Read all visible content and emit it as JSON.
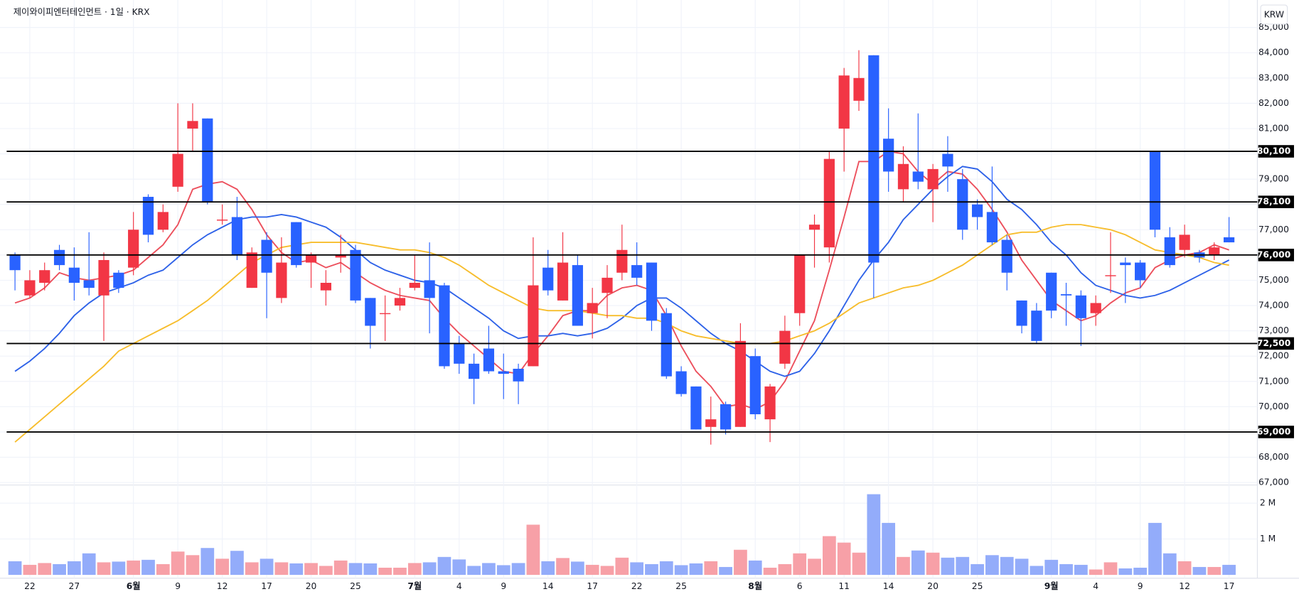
{
  "chart_data": {
    "type": "candlestick",
    "title": "제이와이피엔터테인먼트 · 1일 · KRX",
    "currency": "KRW",
    "up_color": "#f23645",
    "down_color": "#2962ff",
    "volume_up_color": "#f7a0a7",
    "volume_down_color": "#93acfa",
    "categories": [
      null,
      "22",
      null,
      null,
      "27",
      null,
      null,
      null,
      "6월",
      null,
      null,
      "9",
      null,
      null,
      "12",
      null,
      null,
      "17",
      null,
      null,
      "20",
      null,
      null,
      "25",
      null,
      null,
      null,
      "7월",
      null,
      null,
      "4",
      null,
      null,
      "9",
      null,
      null,
      "14",
      null,
      null,
      "17",
      null,
      null,
      "22",
      null,
      null,
      "25",
      null,
      null,
      null,
      null,
      "8월",
      null,
      null,
      "6",
      null,
      null,
      "11",
      null,
      null,
      "14",
      null,
      null,
      "20",
      null,
      null,
      "25",
      null,
      null,
      null,
      null,
      "9월",
      null,
      null,
      "4",
      null,
      null,
      "9",
      null,
      null,
      "12",
      null,
      null,
      "17"
    ],
    "open": [
      76000,
      74400,
      74900,
      76200,
      75500,
      75000,
      74400,
      75300,
      75500,
      78300,
      77000,
      78700,
      81000,
      81400,
      77400,
      77500,
      74700,
      76600,
      74300,
      77300,
      75700,
      74600,
      75900,
      76200,
      74300,
      73700,
      74000,
      74700,
      75000,
      74800,
      72500,
      71700,
      72300,
      71400,
      71500,
      71600,
      75500,
      74200,
      75600,
      73700,
      74500,
      75300,
      75600,
      75700,
      73700,
      71400,
      70800,
      69200,
      70100,
      69200,
      72000,
      69500,
      71700,
      73700,
      77000,
      76300,
      81000,
      82100,
      83900,
      80600,
      78600,
      79300,
      78600,
      80000,
      79000,
      78000,
      77700,
      76600,
      74200,
      73800,
      75300,
      74450,
      74400,
      73700,
      75200,
      75700,
      75700,
      80100,
      76700,
      76200,
      76100,
      76000,
      76700
    ],
    "high": [
      76100,
      75400,
      75700,
      76400,
      76300,
      76900,
      76100,
      75400,
      77700,
      78400,
      78000,
      82000,
      82000,
      81400,
      78000,
      78300,
      76300,
      76900,
      76700,
      77300,
      76100,
      75400,
      76800,
      76400,
      74300,
      74400,
      74700,
      76000,
      76500,
      74900,
      72800,
      72100,
      73200,
      72100,
      71700,
      76700,
      76200,
      76900,
      76000,
      74700,
      75600,
      77200,
      76500,
      75700,
      73900,
      71600,
      70800,
      70400,
      70200,
      73300,
      72300,
      70900,
      73600,
      76000,
      77600,
      80100,
      83400,
      84100,
      83900,
      81800,
      80300,
      81600,
      79600,
      80700,
      79400,
      78200,
      79500,
      76800,
      74200,
      74100,
      75300,
      74900,
      74600,
      74400,
      76900,
      75900,
      75800,
      80100,
      77100,
      77200,
      76200,
      76500,
      77500
    ],
    "low": [
      74600,
      74300,
      74600,
      75400,
      74200,
      74400,
      72600,
      74500,
      75200,
      76500,
      76900,
      78500,
      80100,
      78000,
      77200,
      75800,
      74700,
      73500,
      74100,
      75500,
      74700,
      74000,
      75300,
      74100,
      72300,
      72600,
      73800,
      74600,
      72900,
      71500,
      71300,
      70100,
      71300,
      70300,
      70100,
      71600,
      74400,
      74200,
      73200,
      72700,
      73500,
      75000,
      74800,
      73000,
      71100,
      70400,
      69100,
      68500,
      68900,
      69200,
      69500,
      68600,
      71500,
      73200,
      75500,
      75700,
      79300,
      81700,
      74300,
      78500,
      78100,
      78600,
      77300,
      78500,
      76600,
      77000,
      76400,
      74600,
      72900,
      72500,
      73500,
      73200,
      72400,
      73200,
      74500,
      74100,
      74700,
      76700,
      75500,
      75900,
      75700,
      75800,
      76500
    ],
    "close": [
      75400,
      75000,
      75400,
      75600,
      74900,
      74700,
      75800,
      74700,
      77000,
      76800,
      77700,
      80000,
      81300,
      78100,
      77400,
      76000,
      76100,
      75300,
      75700,
      75600,
      76000,
      74900,
      76000,
      74200,
      73200,
      73700,
      74300,
      74900,
      74300,
      71600,
      71700,
      71100,
      71400,
      71300,
      71000,
      74800,
      74600,
      75700,
      73200,
      74100,
      75100,
      76200,
      75100,
      73400,
      71200,
      70500,
      69100,
      69500,
      69100,
      72600,
      69700,
      70800,
      73000,
      76000,
      77200,
      79800,
      83100,
      83000,
      75700,
      79300,
      79600,
      78900,
      79400,
      79500,
      77000,
      77500,
      76500,
      75300,
      73200,
      72600,
      73800,
      74400,
      73500,
      74100,
      75200,
      75600,
      75000,
      77000,
      75600,
      76800,
      75900,
      76300,
      76500
    ],
    "volume": [
      380000,
      280000,
      330000,
      300000,
      380000,
      600000,
      350000,
      370000,
      400000,
      420000,
      300000,
      650000,
      550000,
      750000,
      450000,
      670000,
      350000,
      450000,
      350000,
      320000,
      330000,
      250000,
      400000,
      330000,
      320000,
      200000,
      200000,
      330000,
      350000,
      500000,
      430000,
      250000,
      330000,
      270000,
      330000,
      1400000,
      380000,
      470000,
      370000,
      280000,
      250000,
      480000,
      350000,
      300000,
      380000,
      270000,
      320000,
      380000,
      220000,
      700000,
      400000,
      200000,
      300000,
      600000,
      450000,
      1080000,
      900000,
      620000,
      2250000,
      1450000,
      500000,
      680000,
      620000,
      480000,
      500000,
      300000,
      550000,
      500000,
      450000,
      250000,
      420000,
      300000,
      280000,
      150000,
      350000,
      180000,
      200000,
      1450000,
      600000,
      380000,
      220000,
      220000,
      280000
    ],
    "lines": [
      {
        "color": "#ec4f5c",
        "values": [
          74100,
          74300,
          74700,
          75300,
          75100,
          75000,
          75100,
          75200,
          75400,
          75900,
          76400,
          77200,
          78600,
          78800,
          78900,
          78600,
          77800,
          76800,
          76100,
          75700,
          75800,
          75500,
          75700,
          75300,
          74900,
          74600,
          74400,
          74300,
          74200,
          73500,
          72900,
          72400,
          71900,
          71400,
          71300,
          72100,
          72800,
          73600,
          73800,
          73800,
          74400,
          74700,
          74800,
          74600,
          73600,
          72400,
          71400,
          70800,
          70000,
          70100,
          69900,
          70200,
          71000,
          72200,
          73400,
          75400,
          77500,
          79700,
          79700,
          80100,
          80000,
          79300,
          78800,
          79300,
          79200,
          78600,
          77800,
          76900,
          75800,
          75000,
          74200,
          73800,
          73400,
          73600,
          74100,
          74500,
          74700,
          75500,
          75800,
          76000,
          76100,
          76400,
          76200
        ]
      },
      {
        "color": "#2e62e8",
        "values": [
          71400,
          71800,
          72300,
          72900,
          73600,
          74100,
          74500,
          74700,
          74900,
          75200,
          75400,
          75900,
          76400,
          76800,
          77100,
          77400,
          77500,
          77500,
          77600,
          77500,
          77300,
          77100,
          76700,
          76200,
          75700,
          75400,
          75200,
          75000,
          74900,
          74700,
          74300,
          73900,
          73500,
          73000,
          72700,
          72800,
          72800,
          72900,
          72800,
          72900,
          73100,
          73500,
          74000,
          74300,
          74300,
          73900,
          73400,
          72900,
          72500,
          72200,
          71800,
          71400,
          71200,
          71400,
          72100,
          73000,
          74000,
          75000,
          75800,
          76500,
          77400,
          78000,
          78600,
          79100,
          79500,
          79400,
          78900,
          78200,
          77800,
          77200,
          76500,
          76000,
          75300,
          74800,
          74600,
          74400,
          74300,
          74400,
          74600,
          74900,
          75200,
          75500,
          75800
        ]
      },
      {
        "color": "#f7bd2c",
        "values": [
          68600,
          69100,
          69600,
          70100,
          70600,
          71100,
          71600,
          72200,
          72500,
          72800,
          73100,
          73400,
          73800,
          74200,
          74700,
          75200,
          75700,
          76000,
          76300,
          76400,
          76500,
          76500,
          76500,
          76500,
          76400,
          76300,
          76200,
          76200,
          76100,
          75900,
          75600,
          75200,
          74800,
          74500,
          74200,
          73900,
          73800,
          73800,
          73800,
          73700,
          73600,
          73600,
          73500,
          73500,
          73300,
          73000,
          72800,
          72700,
          72600,
          72500,
          72500,
          72500,
          72600,
          72800,
          73000,
          73300,
          73700,
          74100,
          74300,
          74500,
          74700,
          74800,
          75000,
          75300,
          75600,
          76000,
          76400,
          76800,
          76900,
          76900,
          77100,
          77200,
          77200,
          77100,
          77000,
          76800,
          76500,
          76200,
          76100,
          76000,
          75900,
          75700,
          75600
        ]
      }
    ],
    "hlines": [
      {
        "value": 80100,
        "label": "80,100"
      },
      {
        "value": 78100,
        "label": "78,100"
      },
      {
        "value": 76000,
        "label": "76,000"
      },
      {
        "value": 72500,
        "label": "72,500"
      },
      {
        "value": 69000,
        "label": "69,000"
      }
    ],
    "ylim": [
      67000,
      85000
    ],
    "yticks": [
      {
        "value": 67000,
        "label": "67,000"
      },
      {
        "value": 68000,
        "label": "68,000"
      },
      {
        "value": 69000,
        "label": "69,000"
      },
      {
        "value": 70000,
        "label": "70,000"
      },
      {
        "value": 71000,
        "label": "71,000"
      },
      {
        "value": 72000,
        "label": "72,000"
      },
      {
        "value": 73000,
        "label": "73,000"
      },
      {
        "value": 74000,
        "label": "74,000"
      },
      {
        "value": 75000,
        "label": "75,000"
      },
      {
        "value": 76000,
        "label": "76,000"
      },
      {
        "value": 77000,
        "label": "77,000"
      },
      {
        "value": 78000,
        "label": "78,000"
      },
      {
        "value": 79000,
        "label": "79,000"
      },
      {
        "value": 80000,
        "label": "80,000"
      },
      {
        "value": 81000,
        "label": "81,000"
      },
      {
        "value": 82000,
        "label": "82,000"
      },
      {
        "value": 83000,
        "label": "83,000"
      },
      {
        "value": 84000,
        "label": "84,000"
      },
      {
        "value": 85000,
        "label": "85,000"
      }
    ],
    "volume_ylim": [
      0,
      2460000
    ],
    "volume_ticks": [
      {
        "value": 1000000,
        "label": "1 M"
      },
      {
        "value": 2000000,
        "label": "2 M"
      }
    ],
    "grid": true
  }
}
